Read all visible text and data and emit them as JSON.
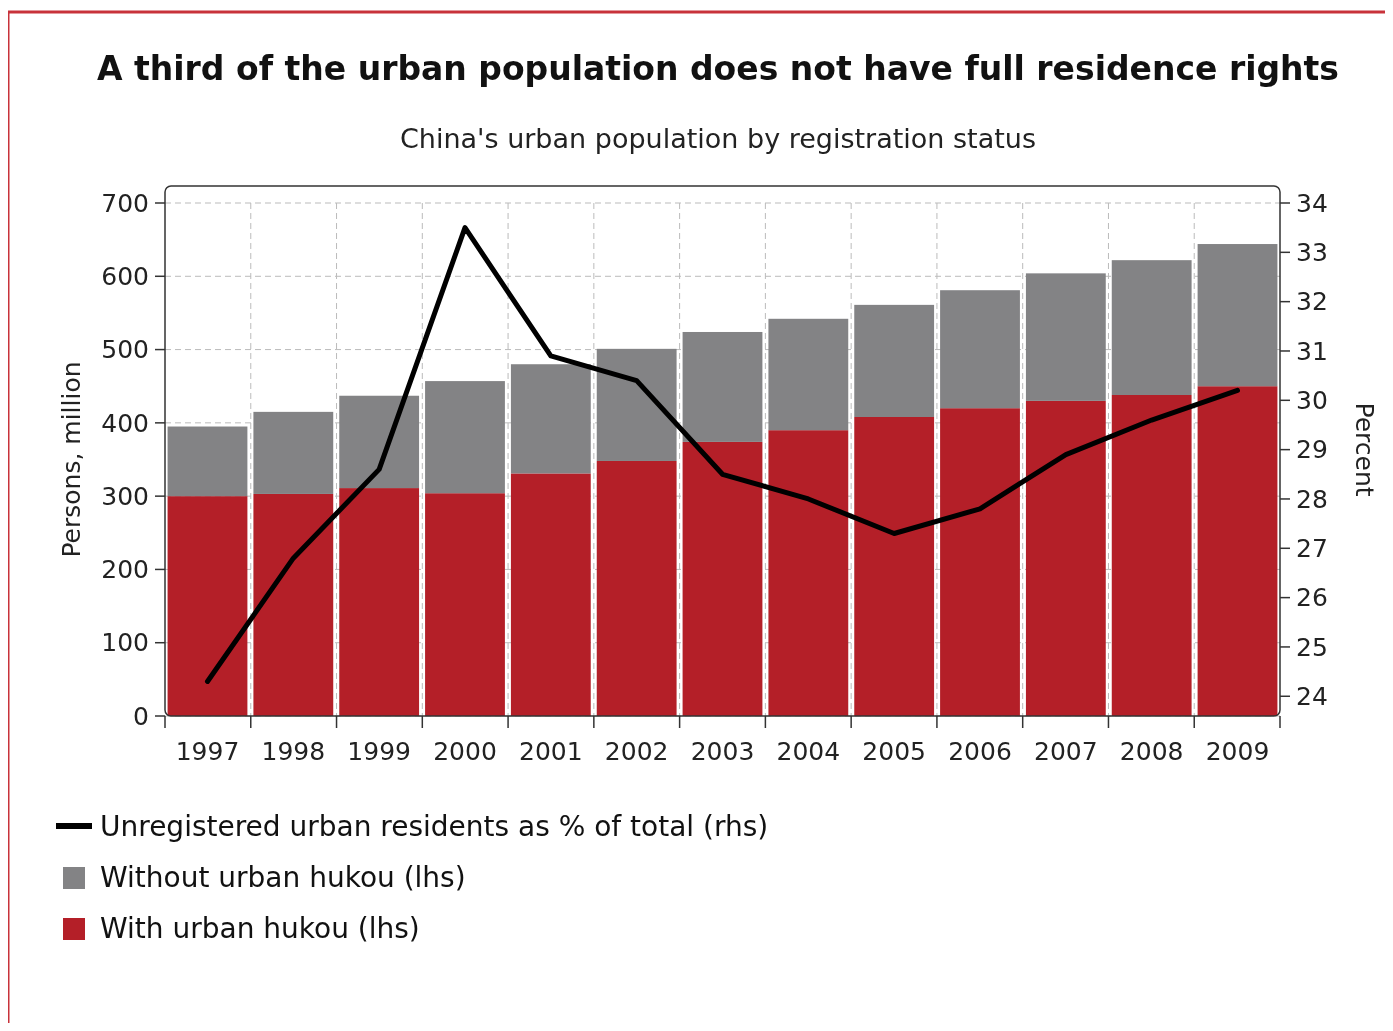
{
  "chart_data": {
    "type": "bar",
    "title": "A third of the urban population does not have full residence rights",
    "subtitle": "China's urban population by registration status",
    "ylabel": "Persons, million",
    "y2label": "Percent",
    "categories": [
      "1997",
      "1998",
      "1999",
      "2000",
      "2001",
      "2002",
      "2003",
      "2004",
      "2005",
      "2006",
      "2007",
      "2008",
      "2009"
    ],
    "stacked": true,
    "series": [
      {
        "name": "With urban hukou (lhs)",
        "color": "#b41f28",
        "values": [
          300,
          303,
          311,
          304,
          331,
          348,
          374,
          390,
          408,
          420,
          430,
          438,
          450
        ]
      },
      {
        "name": "Without urban hukou (lhs)",
        "color": "#838385",
        "values": [
          95,
          112,
          126,
          153,
          149,
          153,
          150,
          152,
          153,
          161,
          174,
          184,
          194
        ]
      },
      {
        "name": "Unregistered urban residents as % of total (rhs)",
        "type": "line",
        "axis": "y2",
        "color": "#000000",
        "values": [
          24.3,
          26.8,
          28.6,
          33.5,
          30.9,
          30.4,
          28.5,
          28.0,
          27.3,
          27.8,
          28.9,
          29.6,
          30.2
        ]
      }
    ],
    "ylim": [
      0,
      700
    ],
    "yticks": [
      0,
      100,
      200,
      300,
      400,
      500,
      600,
      700
    ],
    "y2lim": [
      23.6,
      34
    ],
    "y2ticks": [
      24,
      25,
      26,
      27,
      28,
      29,
      30,
      31,
      32,
      33,
      34
    ],
    "grid": true,
    "legend": "bottom",
    "line_style": "solid"
  }
}
